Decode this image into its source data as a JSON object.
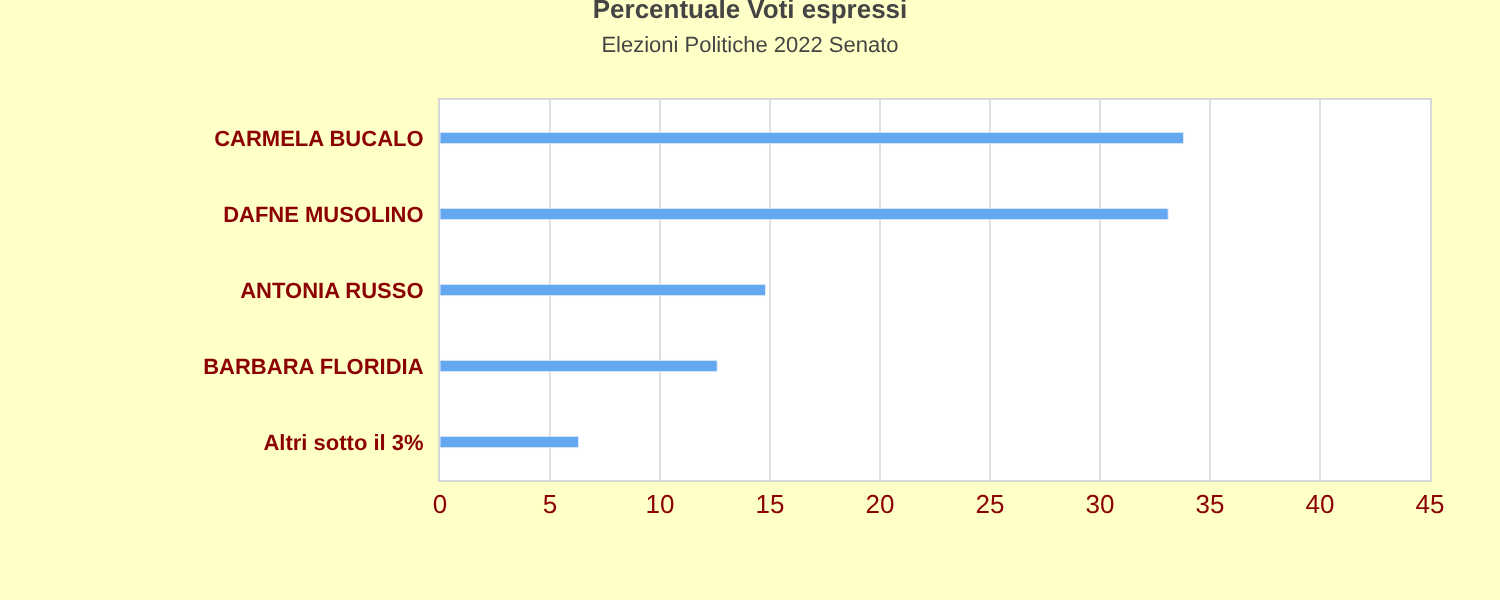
{
  "chart_data": {
    "type": "bar",
    "orientation": "horizontal",
    "title": "Percentuale Voti espressi",
    "subtitle": "Elezioni Politiche 2022 Senato",
    "categories": [
      "CARMELA BUCALO",
      "DAFNE MUSOLINO",
      "ANTONIA RUSSO",
      "BARBARA FLORIDIA",
      "Altri sotto il 3%"
    ],
    "values": [
      33.8,
      33.1,
      14.8,
      12.6,
      6.3
    ],
    "color": "#63a8f0",
    "xlim": [
      0,
      45
    ],
    "xticks": [
      0,
      5,
      10,
      15,
      20,
      25,
      30,
      35,
      40,
      45
    ],
    "grid": "x",
    "legend": false
  }
}
